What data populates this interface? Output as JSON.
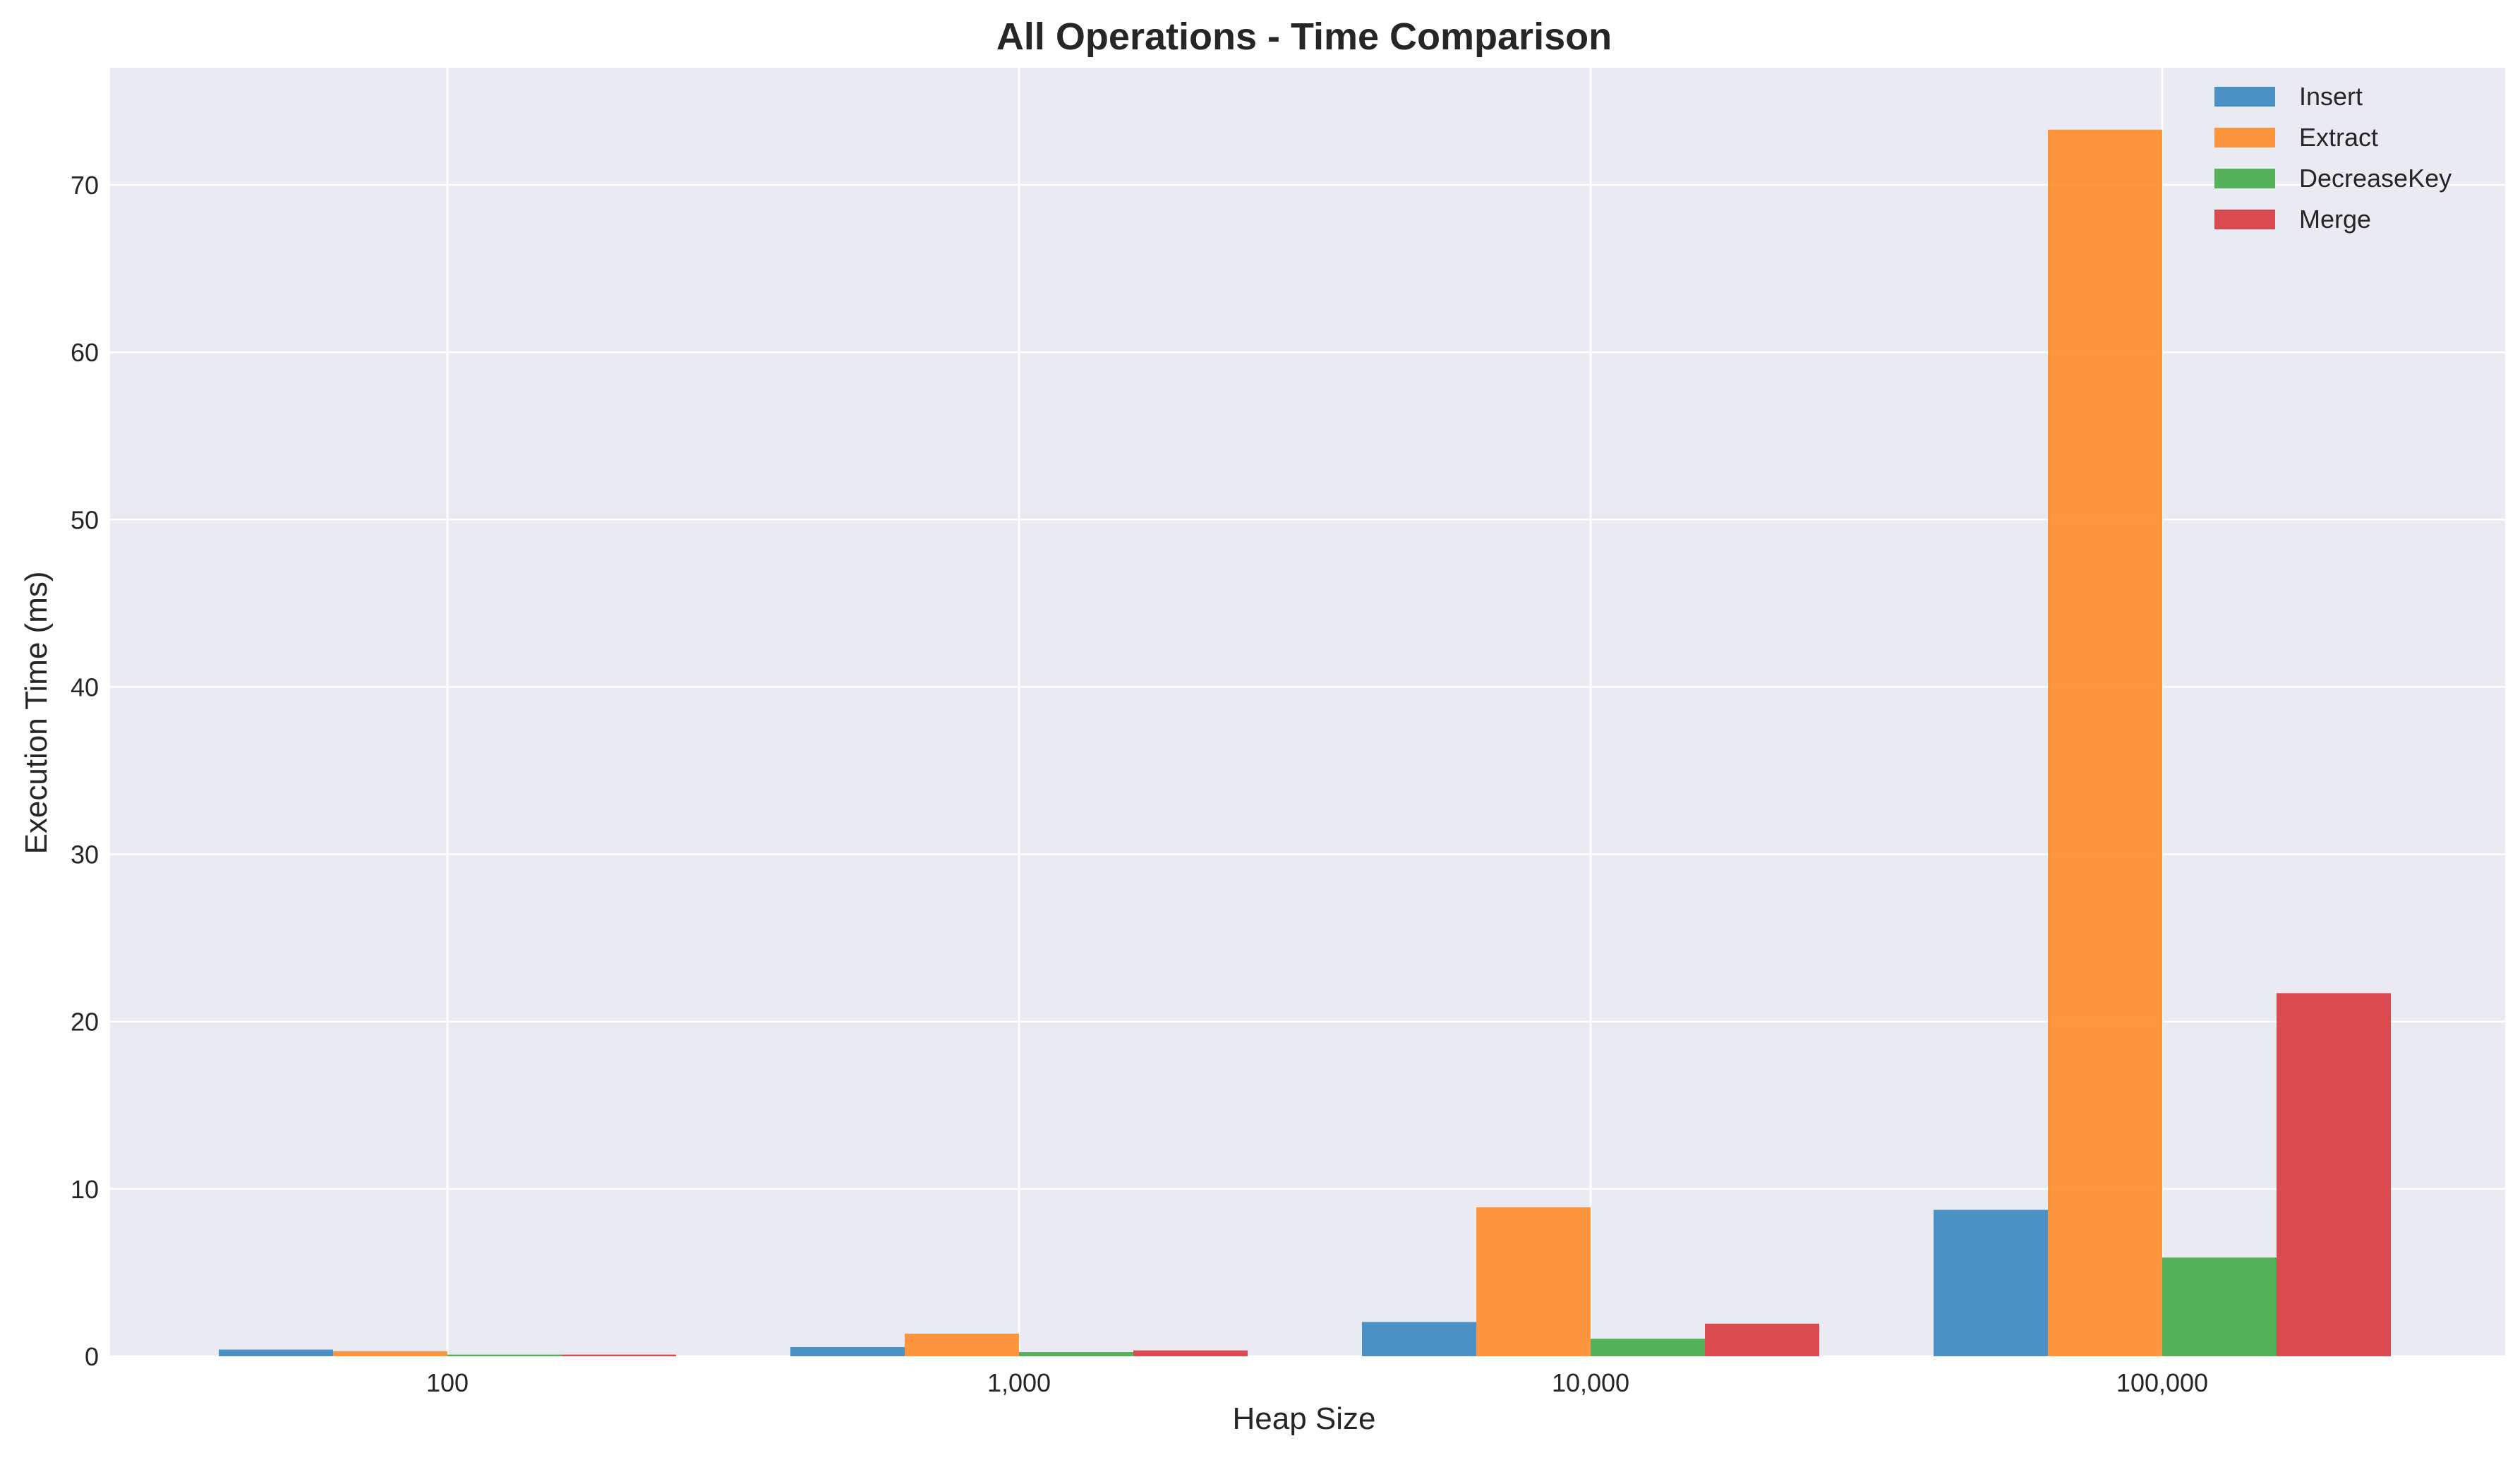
{
  "chart_data": {
    "type": "bar",
    "title": "All Operations - Time Comparison",
    "xlabel": "Heap Size",
    "ylabel": "Execution Time (ms)",
    "categories": [
      "100",
      "1,000",
      "10,000",
      "100,000"
    ],
    "ylim": [
      0,
      77
    ],
    "yticks": [
      0,
      10,
      20,
      30,
      40,
      50,
      60,
      70
    ],
    "grid": true,
    "legend_position": "top-right",
    "series": [
      {
        "name": "Insert",
        "color": "#3a87c0",
        "values": [
          0.4,
          0.55,
          2.05,
          8.75
        ]
      },
      {
        "name": "Extract",
        "color": "#ff8c2a",
        "values": [
          0.3,
          1.35,
          8.9,
          73.3
        ]
      },
      {
        "name": "DecreaseKey",
        "color": "#44aa48",
        "values": [
          0.1,
          0.25,
          1.05,
          5.9
        ]
      },
      {
        "name": "Merge",
        "color": "#d83a3f",
        "values": [
          0.1,
          0.35,
          1.95,
          21.7
        ]
      }
    ]
  },
  "style": {
    "plot_background": "#eaeaf2",
    "grid_color": "#ffffff"
  }
}
